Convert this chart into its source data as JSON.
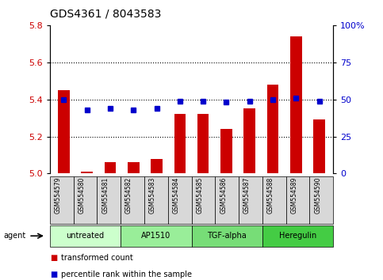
{
  "title": "GDS4361 / 8043583",
  "samples": [
    "GSM554579",
    "GSM554580",
    "GSM554581",
    "GSM554582",
    "GSM554583",
    "GSM554584",
    "GSM554585",
    "GSM554586",
    "GSM554587",
    "GSM554588",
    "GSM554589",
    "GSM554590"
  ],
  "bar_values": [
    5.45,
    5.01,
    5.06,
    5.06,
    5.08,
    5.32,
    5.32,
    5.24,
    5.35,
    5.48,
    5.74,
    5.29
  ],
  "percentile_values": [
    50,
    43,
    44,
    43,
    44,
    49,
    49,
    48,
    49,
    50,
    51,
    49
  ],
  "ylim_left": [
    5.0,
    5.8
  ],
  "ylim_right": [
    0,
    100
  ],
  "yticks_left": [
    5.0,
    5.2,
    5.4,
    5.6,
    5.8
  ],
  "yticks_right": [
    0,
    25,
    50,
    75,
    100
  ],
  "ytick_labels_right": [
    "0",
    "25",
    "50",
    "75",
    "100%"
  ],
  "bar_color": "#cc0000",
  "dot_color": "#0000cc",
  "bg_color": "#ffffff",
  "agents": [
    {
      "label": "untreated",
      "start": 0,
      "end": 3,
      "color": "#ccffcc"
    },
    {
      "label": "AP1510",
      "start": 3,
      "end": 6,
      "color": "#99ee99"
    },
    {
      "label": "TGF-alpha",
      "start": 6,
      "end": 9,
      "color": "#77dd77"
    },
    {
      "label": "Heregulin",
      "start": 9,
      "end": 12,
      "color": "#44cc44"
    }
  ],
  "agent_label": "agent",
  "legend1_label": "transformed count",
  "legend2_label": "percentile rank within the sample",
  "bar_width": 0.5,
  "grid_yticks": [
    5.2,
    5.4,
    5.6
  ]
}
